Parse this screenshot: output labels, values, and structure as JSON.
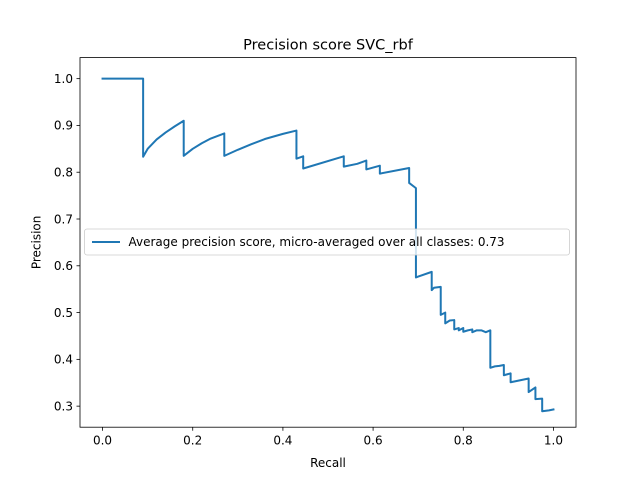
{
  "chart_data": {
    "type": "line",
    "title": "Precision score SVC_rbf",
    "xlabel": "Recall",
    "ylabel": "Precision",
    "xlim": [
      -0.05,
      1.05
    ],
    "ylim": [
      0.255,
      1.045
    ],
    "xticks": [
      0.0,
      0.2,
      0.4,
      0.6,
      0.8,
      1.0
    ],
    "xtick_labels": [
      "0.0",
      "0.2",
      "0.4",
      "0.6",
      "0.8",
      "1.0"
    ],
    "yticks": [
      0.3,
      0.4,
      0.5,
      0.6,
      0.7,
      0.8,
      0.9,
      1.0
    ],
    "ytick_labels": [
      "0.3",
      "0.4",
      "0.5",
      "0.6",
      "0.7",
      "0.8",
      "0.9",
      "1.0"
    ],
    "grid": false,
    "legend_position": "center-left",
    "series": [
      {
        "name": "Average precision score, micro-averaged over all classes: 0.73",
        "color": "#1f77b4",
        "x": [
          0.0,
          0.09,
          0.09,
          0.1,
          0.12,
          0.14,
          0.16,
          0.18,
          0.18,
          0.2,
          0.22,
          0.24,
          0.27,
          0.27,
          0.3,
          0.33,
          0.36,
          0.4,
          0.43,
          0.43,
          0.445,
          0.445,
          0.535,
          0.535,
          0.565,
          0.585,
          0.585,
          0.615,
          0.615,
          0.68,
          0.68,
          0.695,
          0.695,
          0.7,
          0.7,
          0.73,
          0.73,
          0.735,
          0.735,
          0.75,
          0.75,
          0.76,
          0.76,
          0.77,
          0.77,
          0.78,
          0.78,
          0.79,
          0.79,
          0.8,
          0.8,
          0.81,
          0.81,
          0.82,
          0.82,
          0.83,
          0.83,
          0.84,
          0.84,
          0.85,
          0.85,
          0.86,
          0.86,
          0.87,
          0.87,
          0.88,
          0.88,
          0.89,
          0.89,
          0.905,
          0.905,
          0.945,
          0.945,
          0.96,
          0.96,
          0.975,
          0.975,
          0.99,
          0.99,
          1.0
        ],
        "y": [
          1.0,
          1.0,
          0.833,
          0.85,
          0.87,
          0.885,
          0.898,
          0.91,
          0.835,
          0.85,
          0.862,
          0.872,
          0.883,
          0.835,
          0.848,
          0.86,
          0.871,
          0.882,
          0.889,
          0.829,
          0.834,
          0.808,
          0.834,
          0.812,
          0.818,
          0.825,
          0.806,
          0.814,
          0.797,
          0.809,
          0.777,
          0.766,
          0.575,
          0.577,
          0.577,
          0.587,
          0.548,
          0.553,
          0.553,
          0.555,
          0.495,
          0.5,
          0.477,
          0.483,
          0.483,
          0.484,
          0.464,
          0.467,
          0.462,
          0.467,
          0.459,
          0.462,
          0.462,
          0.464,
          0.458,
          0.462,
          0.462,
          0.462,
          0.462,
          0.458,
          0.458,
          0.462,
          0.382,
          0.385,
          0.385,
          0.386,
          0.386,
          0.388,
          0.366,
          0.37,
          0.351,
          0.359,
          0.33,
          0.34,
          0.315,
          0.316,
          0.289,
          0.291,
          0.291,
          0.293
        ]
      }
    ]
  }
}
